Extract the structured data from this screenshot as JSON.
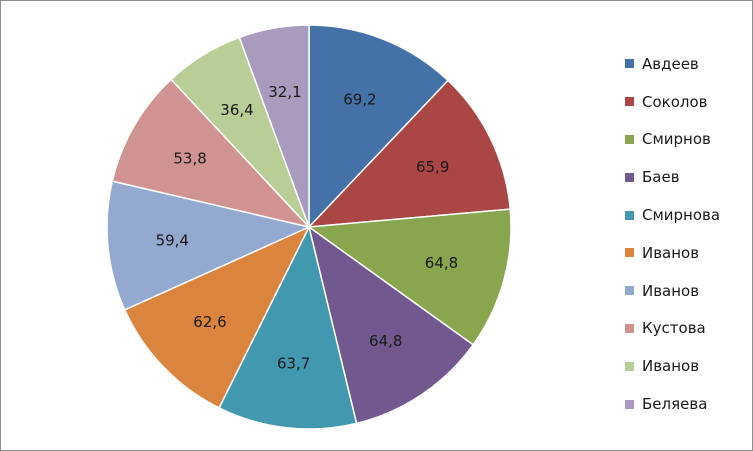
{
  "chart_data": {
    "type": "pie",
    "title": "",
    "legend_position": "right",
    "categories": [
      "Авдеев",
      "Соколов",
      "Смирнов",
      "Баев",
      "Смирнова",
      "Иванов",
      "Иванов",
      "Кустова",
      "Иванов",
      "Беляева"
    ],
    "values": [
      69.2,
      65.9,
      64.8,
      64.8,
      63.7,
      62.6,
      59.4,
      53.8,
      36.4,
      32.1
    ],
    "value_labels": [
      "69,2",
      "65,9",
      "64,8",
      "64,8",
      "63,7",
      "62,6",
      "59,4",
      "53,8",
      "36,4",
      "32,1"
    ],
    "colors": [
      "#4472A8",
      "#AA4643",
      "#89A54E",
      "#71588F",
      "#4198AF",
      "#DB843D",
      "#93A9CF",
      "#D19392",
      "#B9CD96",
      "#A99BBD"
    ]
  }
}
